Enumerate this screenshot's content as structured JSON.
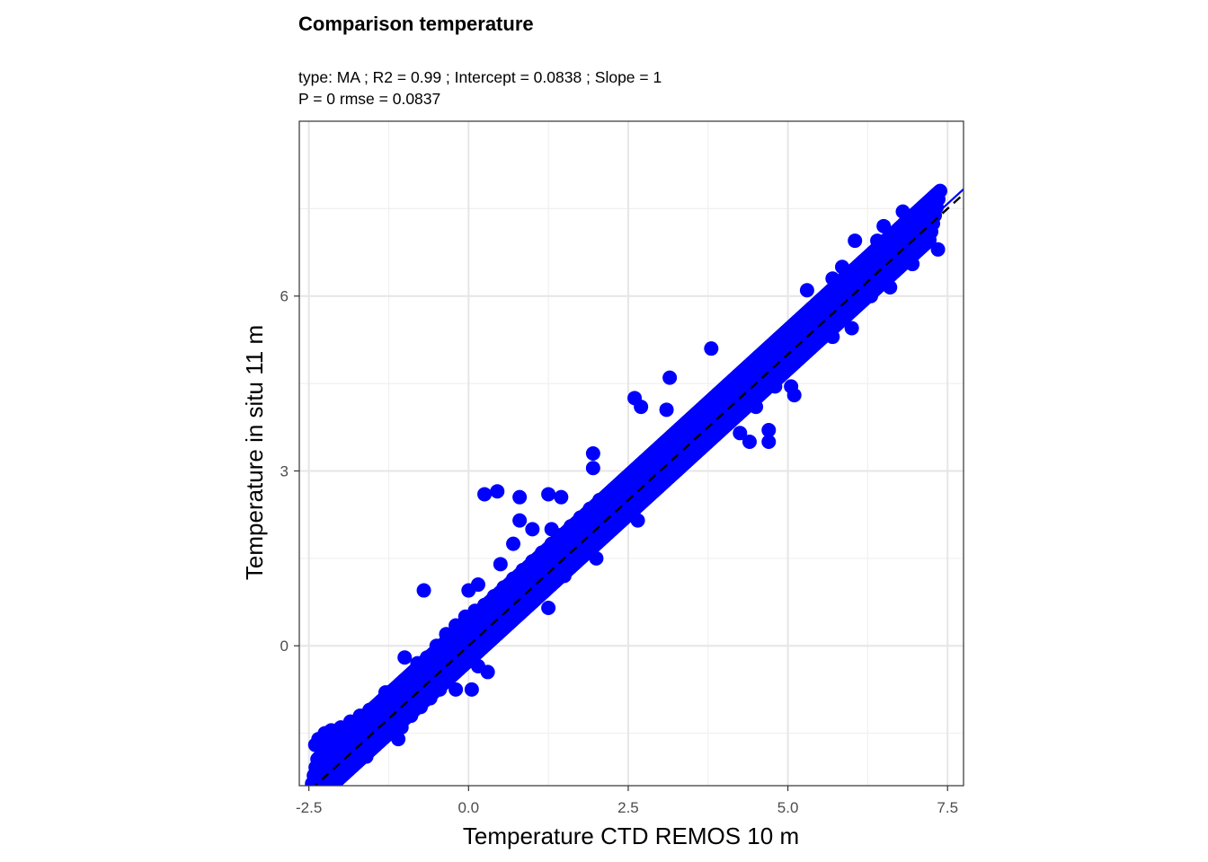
{
  "chart_data": {
    "type": "scatter",
    "title": "Comparison temperature",
    "subtitle_lines": [
      "type:  MA ; R2 =  0.99 ; Intercept = 0.0838 ; Slope = 1",
      "P = 0 rmse = 0.0837"
    ],
    "xlabel": "Temperature CTD REMOS 10 m",
    "ylabel": "Temperature in situ 11 m",
    "xlim": [
      -2.65,
      7.75
    ],
    "ylim": [
      -2.4,
      9.0
    ],
    "x_ticks": [
      -2.5,
      0.0,
      2.5,
      5.0,
      7.5
    ],
    "x_tick_labels": [
      "-2.5",
      "0.0",
      "2.5",
      "5.0",
      "7.5"
    ],
    "y_ticks": [
      0,
      3,
      6
    ],
    "y_tick_labels": [
      "0",
      "3",
      "6"
    ],
    "x_minor_ticks": [
      -1.25,
      1.25,
      3.75,
      6.25
    ],
    "y_minor_ticks": [
      -1.5,
      1.5,
      4.5,
      7.5
    ],
    "grid": true,
    "point_color": "#0000ff",
    "fit_line": {
      "name": "MA regression",
      "intercept": 0.0838,
      "slope": 1,
      "color": "#0000ff"
    },
    "reference_line": {
      "name": "1:1",
      "intercept": 0,
      "slope": 1,
      "color": "#000000",
      "dashed": true
    },
    "trend": {
      "x_range": [
        -2.45,
        7.3
      ],
      "intercept": 0.0838,
      "slope": 1
    },
    "points": [
      [
        -2.4,
        -1.7
      ],
      [
        -2.35,
        -1.6
      ],
      [
        -2.3,
        -1.75
      ],
      [
        -2.25,
        -1.5
      ],
      [
        -2.2,
        -1.85
      ],
      [
        -2.15,
        -1.45
      ],
      [
        -2.1,
        -1.7
      ],
      [
        -2.0,
        -1.4
      ],
      [
        -1.95,
        -1.9
      ],
      [
        -1.9,
        -1.6
      ],
      [
        -1.85,
        -1.3
      ],
      [
        -1.8,
        -1.85
      ],
      [
        -1.75,
        -1.5
      ],
      [
        -1.7,
        -1.2
      ],
      [
        -1.65,
        -1.75
      ],
      [
        -1.6,
        -1.4
      ],
      [
        -1.55,
        -1.1
      ],
      [
        -1.5,
        -1.6
      ],
      [
        -1.45,
        -1.3
      ],
      [
        -1.4,
        -1.0
      ],
      [
        -1.35,
        -1.55
      ],
      [
        -1.3,
        -1.25
      ],
      [
        -1.25,
        -0.8
      ],
      [
        -1.2,
        -1.45
      ],
      [
        -1.15,
        -1.1
      ],
      [
        -1.1,
        -0.7
      ],
      [
        -1.05,
        -1.4
      ],
      [
        -1.0,
        -0.9
      ],
      [
        -0.95,
        -0.55
      ],
      [
        -0.9,
        -1.2
      ],
      [
        -0.85,
        -0.8
      ],
      [
        -0.8,
        -0.3
      ],
      [
        -0.75,
        -1.05
      ],
      [
        -0.7,
        -0.6
      ],
      [
        -0.65,
        -0.2
      ],
      [
        -0.6,
        -0.9
      ],
      [
        -0.55,
        -0.4
      ],
      [
        -0.5,
        0.0
      ],
      [
        -0.45,
        -0.75
      ],
      [
        -0.4,
        -0.3
      ],
      [
        -0.35,
        0.2
      ],
      [
        -0.3,
        -0.55
      ],
      [
        -0.25,
        -0.1
      ],
      [
        -0.2,
        0.35
      ],
      [
        -0.15,
        -0.4
      ],
      [
        -0.1,
        0.05
      ],
      [
        -0.05,
        0.5
      ],
      [
        0.0,
        -0.25
      ],
      [
        0.05,
        0.2
      ],
      [
        0.1,
        0.6
      ],
      [
        0.15,
        -0.05
      ],
      [
        0.2,
        0.35
      ],
      [
        0.25,
        0.7
      ],
      [
        0.3,
        0.1
      ],
      [
        0.35,
        0.5
      ],
      [
        0.4,
        0.85
      ],
      [
        0.45,
        0.2
      ],
      [
        0.5,
        0.6
      ],
      [
        0.55,
        1.0
      ],
      [
        0.6,
        0.35
      ],
      [
        0.65,
        0.75
      ],
      [
        0.7,
        1.15
      ],
      [
        0.75,
        0.5
      ],
      [
        0.8,
        0.9
      ],
      [
        0.85,
        1.3
      ],
      [
        0.9,
        0.65
      ],
      [
        0.95,
        1.05
      ],
      [
        1.0,
        1.45
      ],
      [
        1.05,
        0.8
      ],
      [
        1.1,
        1.2
      ],
      [
        1.15,
        1.6
      ],
      [
        1.2,
        0.95
      ],
      [
        1.25,
        1.35
      ],
      [
        1.3,
        1.75
      ],
      [
        1.35,
        1.1
      ],
      [
        1.4,
        1.5
      ],
      [
        1.45,
        1.9
      ],
      [
        1.5,
        1.3
      ],
      [
        1.55,
        1.65
      ],
      [
        1.6,
        2.05
      ],
      [
        1.65,
        1.45
      ],
      [
        1.7,
        1.8
      ],
      [
        1.75,
        2.2
      ],
      [
        1.8,
        1.6
      ],
      [
        1.85,
        1.95
      ],
      [
        1.9,
        2.35
      ],
      [
        1.95,
        1.75
      ],
      [
        2.0,
        2.1
      ],
      [
        2.05,
        2.5
      ],
      [
        2.1,
        1.9
      ],
      [
        2.15,
        2.25
      ],
      [
        2.2,
        2.6
      ],
      [
        2.25,
        2.05
      ],
      [
        2.3,
        2.4
      ],
      [
        2.35,
        2.75
      ],
      [
        2.4,
        2.2
      ],
      [
        2.45,
        2.55
      ],
      [
        2.5,
        2.9
      ],
      [
        2.55,
        2.35
      ],
      [
        2.6,
        2.7
      ],
      [
        2.65,
        3.05
      ],
      [
        2.7,
        2.5
      ],
      [
        2.75,
        2.85
      ],
      [
        2.8,
        3.2
      ],
      [
        2.85,
        2.65
      ],
      [
        2.9,
        3.0
      ],
      [
        2.95,
        3.35
      ],
      [
        3.0,
        2.8
      ],
      [
        3.05,
        3.15
      ],
      [
        3.1,
        3.5
      ],
      [
        3.15,
        2.95
      ],
      [
        3.2,
        3.3
      ],
      [
        3.25,
        3.65
      ],
      [
        3.3,
        3.1
      ],
      [
        3.35,
        3.45
      ],
      [
        3.4,
        3.8
      ],
      [
        3.45,
        3.25
      ],
      [
        3.5,
        3.6
      ],
      [
        3.55,
        3.95
      ],
      [
        3.6,
        3.4
      ],
      [
        3.65,
        3.75
      ],
      [
        3.7,
        4.1
      ],
      [
        3.75,
        3.55
      ],
      [
        3.8,
        3.9
      ],
      [
        3.85,
        4.25
      ],
      [
        3.9,
        3.7
      ],
      [
        3.95,
        4.05
      ],
      [
        4.0,
        4.4
      ],
      [
        4.05,
        3.85
      ],
      [
        4.1,
        4.2
      ],
      [
        4.15,
        4.55
      ],
      [
        4.2,
        4.0
      ],
      [
        4.25,
        4.35
      ],
      [
        4.3,
        4.7
      ],
      [
        4.35,
        4.15
      ],
      [
        4.4,
        4.5
      ],
      [
        4.45,
        4.85
      ],
      [
        4.5,
        4.3
      ],
      [
        4.55,
        4.65
      ],
      [
        4.6,
        5.0
      ],
      [
        4.65,
        4.45
      ],
      [
        4.7,
        4.8
      ],
      [
        4.75,
        5.15
      ],
      [
        4.8,
        4.6
      ],
      [
        4.85,
        4.95
      ],
      [
        4.9,
        5.3
      ],
      [
        4.95,
        4.75
      ],
      [
        5.0,
        5.1
      ],
      [
        5.05,
        5.45
      ],
      [
        5.1,
        4.9
      ],
      [
        5.15,
        5.25
      ],
      [
        5.2,
        5.6
      ],
      [
        5.25,
        5.05
      ],
      [
        5.3,
        5.4
      ],
      [
        5.35,
        5.75
      ],
      [
        5.4,
        5.2
      ],
      [
        5.45,
        5.55
      ],
      [
        5.5,
        5.9
      ],
      [
        5.55,
        5.35
      ],
      [
        5.6,
        5.7
      ],
      [
        5.65,
        6.05
      ],
      [
        5.7,
        5.5
      ],
      [
        5.75,
        5.85
      ],
      [
        5.8,
        6.2
      ],
      [
        5.85,
        5.65
      ],
      [
        5.9,
        6.0
      ],
      [
        5.95,
        6.35
      ],
      [
        6.0,
        5.8
      ],
      [
        6.05,
        6.15
      ],
      [
        6.1,
        6.5
      ],
      [
        6.15,
        5.95
      ],
      [
        6.2,
        6.3
      ],
      [
        6.25,
        6.65
      ],
      [
        6.3,
        6.1
      ],
      [
        6.35,
        6.45
      ],
      [
        6.4,
        6.8
      ],
      [
        6.45,
        6.25
      ],
      [
        6.5,
        6.6
      ],
      [
        6.55,
        6.95
      ],
      [
        6.6,
        6.4
      ],
      [
        6.65,
        6.75
      ],
      [
        6.7,
        7.1
      ],
      [
        6.75,
        6.55
      ],
      [
        6.8,
        6.9
      ],
      [
        6.85,
        7.25
      ],
      [
        6.9,
        6.7
      ],
      [
        6.95,
        7.05
      ],
      [
        7.0,
        7.35
      ],
      [
        7.05,
        6.9
      ],
      [
        7.1,
        7.2
      ],
      [
        7.15,
        7.4
      ],
      [
        7.2,
        7.1
      ],
      [
        -0.7,
        0.95
      ],
      [
        0.25,
        2.6
      ],
      [
        0.45,
        2.65
      ],
      [
        0.8,
        2.15
      ],
      [
        0.8,
        2.55
      ],
      [
        1.0,
        2.0
      ],
      [
        1.25,
        2.6
      ],
      [
        1.45,
        2.55
      ],
      [
        1.15,
        1.55
      ],
      [
        0.9,
        1.25
      ],
      [
        1.25,
        0.65
      ],
      [
        1.3,
        2.0
      ],
      [
        1.95,
        3.3
      ],
      [
        1.95,
        3.05
      ],
      [
        2.6,
        4.25
      ],
      [
        2.7,
        4.1
      ],
      [
        2.65,
        2.15
      ],
      [
        2.35,
        2.55
      ],
      [
        3.15,
        4.6
      ],
      [
        3.1,
        4.05
      ],
      [
        3.8,
        5.1
      ],
      [
        4.0,
        4.2
      ],
      [
        4.25,
        3.65
      ],
      [
        4.4,
        3.5
      ],
      [
        4.7,
        3.7
      ],
      [
        4.7,
        3.5
      ],
      [
        5.1,
        4.3
      ],
      [
        4.35,
        4.15
      ],
      [
        5.05,
        4.45
      ],
      [
        5.7,
        5.3
      ],
      [
        6.0,
        5.45
      ],
      [
        5.7,
        6.3
      ],
      [
        6.05,
        6.95
      ],
      [
        5.3,
        6.1
      ],
      [
        6.3,
        6.0
      ],
      [
        7.35,
        6.8
      ],
      [
        6.5,
        7.2
      ],
      [
        6.8,
        7.45
      ],
      [
        0.05,
        -0.75
      ],
      [
        0.15,
        -0.35
      ],
      [
        -0.2,
        -0.75
      ],
      [
        -0.35,
        -0.55
      ],
      [
        0.3,
        -0.45
      ],
      [
        -1.3,
        -0.8
      ],
      [
        -1.0,
        -0.2
      ],
      [
        -1.1,
        -1.6
      ],
      [
        -1.6,
        -1.9
      ],
      [
        -2.25,
        -1.7
      ],
      [
        -1.75,
        -1.95
      ],
      [
        -0.6,
        -0.35
      ],
      [
        0.0,
        0.95
      ],
      [
        0.15,
        1.05
      ],
      [
        0.5,
        1.4
      ],
      [
        0.7,
        1.75
      ],
      [
        1.2,
        0.95
      ],
      [
        1.5,
        1.2
      ],
      [
        2.0,
        1.5
      ],
      [
        2.3,
        2.1
      ],
      [
        2.85,
        2.75
      ],
      [
        3.5,
        3.25
      ],
      [
        3.6,
        3.9
      ],
      [
        4.2,
        4.45
      ],
      [
        4.5,
        4.1
      ],
      [
        4.8,
        4.45
      ],
      [
        5.55,
        5.3
      ],
      [
        5.2,
        5.35
      ],
      [
        5.85,
        6.5
      ],
      [
        6.25,
        6.25
      ],
      [
        6.6,
        6.15
      ],
      [
        6.9,
        7.05
      ],
      [
        6.95,
        6.55
      ],
      [
        6.4,
        6.95
      ],
      [
        6.75,
        6.9
      ]
    ]
  }
}
